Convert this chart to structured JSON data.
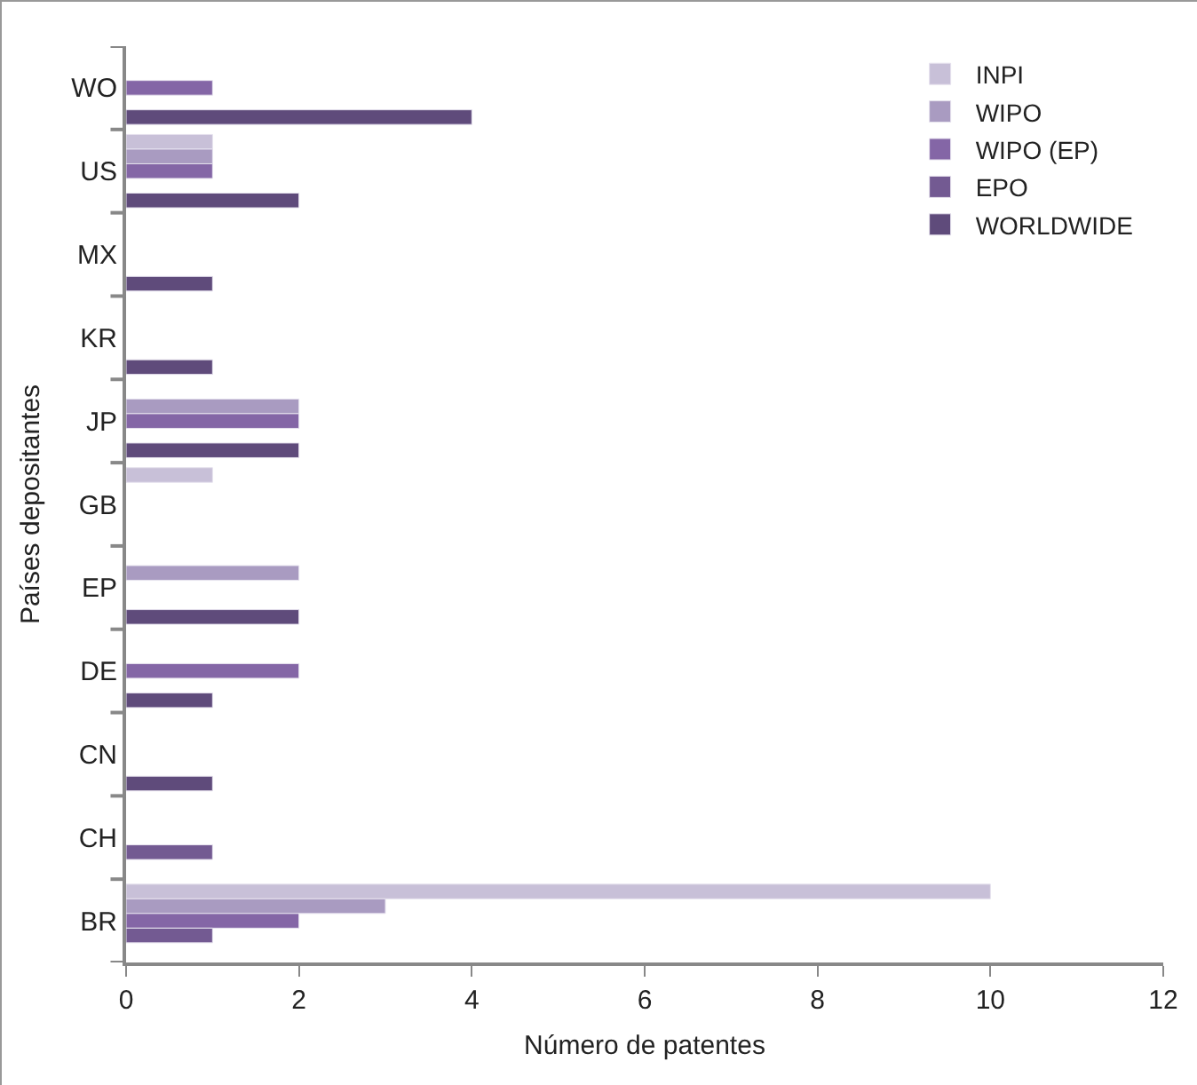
{
  "chart_data": {
    "type": "bar",
    "orientation": "horizontal",
    "xlabel": "Número de patentes",
    "ylabel": "Países depositantes",
    "categories": [
      "WO",
      "US",
      "MX",
      "KR",
      "JP",
      "GB",
      "EP",
      "DE",
      "CN",
      "CH",
      "BR"
    ],
    "series": [
      {
        "name": "INPI",
        "color": "#c8c0d8",
        "values": [
          null,
          1,
          null,
          null,
          null,
          1,
          null,
          null,
          null,
          null,
          10
        ]
      },
      {
        "name": "WIPO",
        "color": "#a99bc1",
        "values": [
          null,
          1,
          null,
          null,
          2,
          null,
          2,
          null,
          null,
          null,
          3
        ]
      },
      {
        "name": "WIPO (EP)",
        "color": "#8466a6",
        "values": [
          1,
          1,
          null,
          null,
          2,
          null,
          null,
          2,
          null,
          null,
          2
        ]
      },
      {
        "name": "EPO",
        "color": "#735a92",
        "values": [
          null,
          null,
          null,
          null,
          null,
          null,
          null,
          null,
          null,
          1,
          1
        ]
      },
      {
        "name": "WORLDWIDE",
        "color": "#5f4b7b",
        "values": [
          4,
          2,
          1,
          1,
          2,
          null,
          2,
          1,
          1,
          null,
          null
        ]
      }
    ],
    "xlim": [
      0,
      12
    ],
    "xticks": [
      0,
      2,
      4,
      6,
      8,
      10,
      12
    ],
    "grid": false,
    "legend": "top right"
  }
}
